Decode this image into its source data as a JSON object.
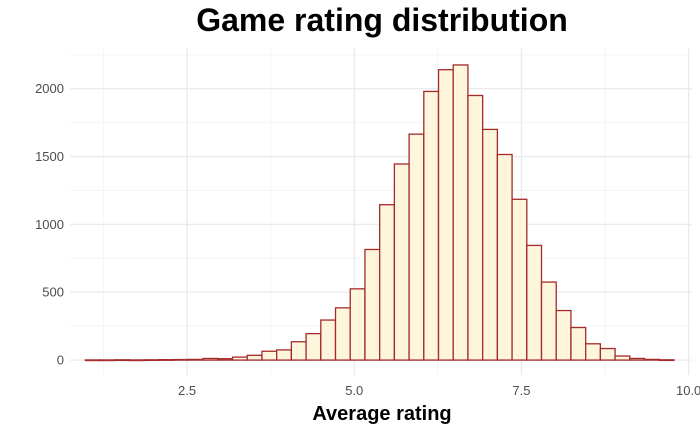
{
  "chart_data": {
    "type": "bar",
    "title": "Game rating distribution",
    "xlabel": "Average rating",
    "ylabel": "",
    "xlim": [
      0.75,
      10.05
    ],
    "ylim": [
      -110,
      2300
    ],
    "x_ticks": [
      2.5,
      5.0,
      7.5,
      10.0
    ],
    "x_tick_labels": [
      "2.5",
      "5.0",
      "7.5",
      "10.0"
    ],
    "y_ticks": [
      0,
      500,
      1000,
      1500,
      2000
    ],
    "y_tick_labels": [
      "0",
      "500",
      "1000",
      "1500",
      "2000"
    ],
    "bin_width": 0.22,
    "bins": [
      {
        "x0": 0.98,
        "count": 1
      },
      {
        "x0": 1.2,
        "count": 1
      },
      {
        "x0": 1.42,
        "count": 2
      },
      {
        "x0": 1.64,
        "count": 1
      },
      {
        "x0": 1.86,
        "count": 2
      },
      {
        "x0": 2.08,
        "count": 3
      },
      {
        "x0": 2.3,
        "count": 4
      },
      {
        "x0": 2.52,
        "count": 5
      },
      {
        "x0": 2.74,
        "count": 12
      },
      {
        "x0": 2.96,
        "count": 10
      },
      {
        "x0": 3.18,
        "count": 22
      },
      {
        "x0": 3.4,
        "count": 35
      },
      {
        "x0": 3.62,
        "count": 65
      },
      {
        "x0": 3.84,
        "count": 75
      },
      {
        "x0": 4.06,
        "count": 135
      },
      {
        "x0": 4.28,
        "count": 195
      },
      {
        "x0": 4.5,
        "count": 295
      },
      {
        "x0": 4.72,
        "count": 385
      },
      {
        "x0": 4.94,
        "count": 525
      },
      {
        "x0": 5.16,
        "count": 815
      },
      {
        "x0": 5.38,
        "count": 1145
      },
      {
        "x0": 5.6,
        "count": 1445
      },
      {
        "x0": 5.82,
        "count": 1665
      },
      {
        "x0": 6.04,
        "count": 1980
      },
      {
        "x0": 6.26,
        "count": 2140
      },
      {
        "x0": 6.48,
        "count": 2175
      },
      {
        "x0": 6.7,
        "count": 1950
      },
      {
        "x0": 6.92,
        "count": 1700
      },
      {
        "x0": 7.14,
        "count": 1515
      },
      {
        "x0": 7.36,
        "count": 1185
      },
      {
        "x0": 7.58,
        "count": 845
      },
      {
        "x0": 7.8,
        "count": 575
      },
      {
        "x0": 8.02,
        "count": 365
      },
      {
        "x0": 8.24,
        "count": 240
      },
      {
        "x0": 8.46,
        "count": 120
      },
      {
        "x0": 8.68,
        "count": 85
      },
      {
        "x0": 8.9,
        "count": 30
      },
      {
        "x0": 9.12,
        "count": 12
      },
      {
        "x0": 9.34,
        "count": 5
      },
      {
        "x0": 9.56,
        "count": 2
      }
    ],
    "grid": true,
    "colors": {
      "bar_fill": "#fdf5dc",
      "bar_stroke": "#a52a2a",
      "grid_major": "#ebebeb",
      "grid_minor": "#f5f5f5"
    }
  }
}
